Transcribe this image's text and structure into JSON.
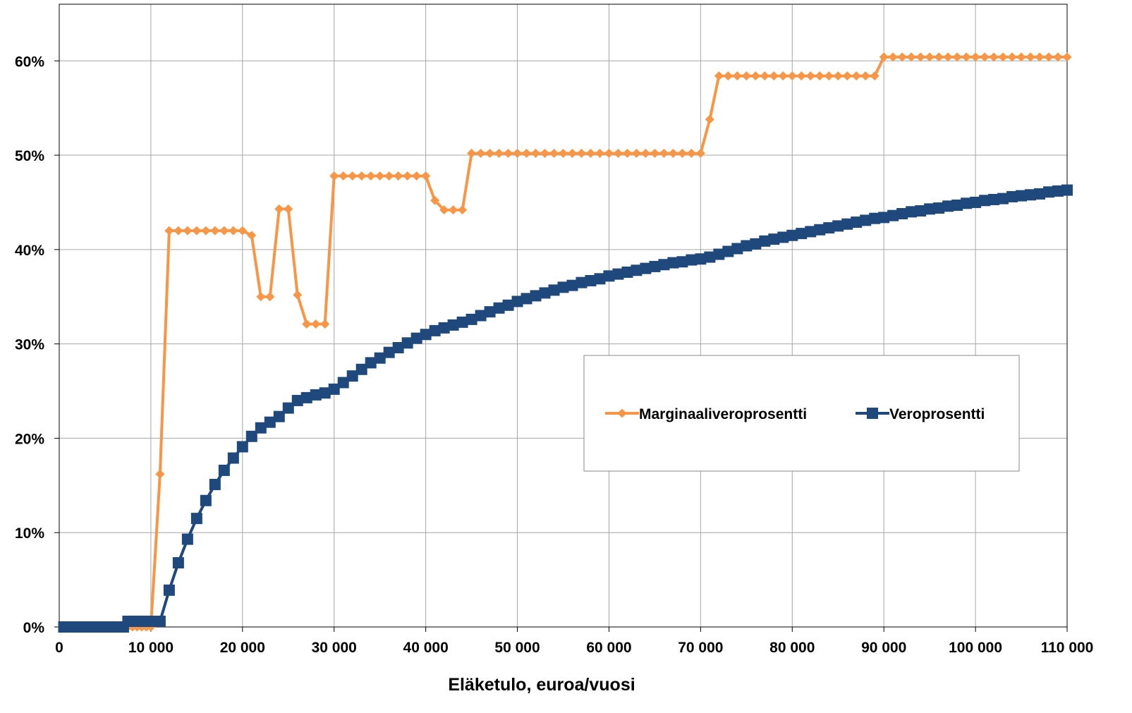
{
  "chart_data": {
    "type": "line",
    "xlabel": "Eläketulo, euroa/vuosi",
    "ylabel": "",
    "xlim": [
      0,
      110000
    ],
    "ylim": [
      0,
      0.6
    ],
    "x_ticks": [
      0,
      10000,
      20000,
      30000,
      40000,
      50000,
      60000,
      70000,
      80000,
      90000,
      100000,
      110000
    ],
    "x_tick_labels": [
      "0",
      "10 000",
      "20 000",
      "30 000",
      "40 000",
      "50 000",
      "60 000",
      "70 000",
      "80 000",
      "90 000",
      "100 000",
      "110 000"
    ],
    "y_ticks": [
      0,
      0.1,
      0.2,
      0.3,
      0.4,
      0.5,
      0.6
    ],
    "y_tick_labels": [
      "0%",
      "10%",
      "20%",
      "30%",
      "40%",
      "50%",
      "60%"
    ],
    "grid": true,
    "legend_position": "center-right",
    "series": [
      {
        "name": "Marginaaliveroprosentti",
        "color": "#F79646",
        "marker": "diamond",
        "x": [
          500,
          1000,
          1500,
          2000,
          2500,
          3000,
          3500,
          4000,
          4500,
          5000,
          5500,
          6000,
          6500,
          7000,
          7500,
          8000,
          8500,
          9000,
          9500,
          10000,
          11000,
          12000,
          13000,
          14000,
          15000,
          16000,
          17000,
          18000,
          19000,
          20000,
          21000,
          22000,
          23000,
          24000,
          25000,
          26000,
          27000,
          28000,
          29000,
          30000,
          31000,
          32000,
          33000,
          34000,
          35000,
          36000,
          37000,
          38000,
          39000,
          40000,
          41000,
          42000,
          43000,
          44000,
          45000,
          46000,
          47000,
          48000,
          49000,
          50000,
          51000,
          52000,
          53000,
          54000,
          55000,
          56000,
          57000,
          58000,
          59000,
          60000,
          61000,
          62000,
          63000,
          64000,
          65000,
          66000,
          67000,
          68000,
          69000,
          70000,
          71000,
          72000,
          73000,
          74000,
          75000,
          76000,
          77000,
          78000,
          79000,
          80000,
          81000,
          82000,
          83000,
          84000,
          85000,
          86000,
          87000,
          88000,
          89000,
          90000,
          91000,
          92000,
          93000,
          94000,
          95000,
          96000,
          97000,
          98000,
          99000,
          100000,
          101000,
          102000,
          103000,
          104000,
          105000,
          106000,
          107000,
          108000,
          109000,
          110000
        ],
        "y": [
          0,
          0,
          0,
          0,
          0,
          0,
          0,
          0,
          0,
          0,
          0,
          0,
          0,
          0,
          0,
          0,
          0,
          0,
          0,
          0,
          0.162,
          0.42,
          0.42,
          0.42,
          0.42,
          0.42,
          0.42,
          0.42,
          0.42,
          0.42,
          0.415,
          0.35,
          0.35,
          0.443,
          0.443,
          0.352,
          0.321,
          0.321,
          0.321,
          0.478,
          0.478,
          0.478,
          0.478,
          0.478,
          0.478,
          0.478,
          0.478,
          0.478,
          0.478,
          0.478,
          0.452,
          0.442,
          0.442,
          0.442,
          0.502,
          0.502,
          0.502,
          0.502,
          0.502,
          0.502,
          0.502,
          0.502,
          0.502,
          0.502,
          0.502,
          0.502,
          0.502,
          0.502,
          0.502,
          0.502,
          0.502,
          0.502,
          0.502,
          0.502,
          0.502,
          0.502,
          0.502,
          0.502,
          0.502,
          0.502,
          0.538,
          0.584,
          0.584,
          0.584,
          0.584,
          0.584,
          0.584,
          0.584,
          0.584,
          0.584,
          0.584,
          0.584,
          0.584,
          0.584,
          0.584,
          0.584,
          0.584,
          0.584,
          0.584,
          0.604,
          0.604,
          0.604,
          0.604,
          0.604,
          0.604,
          0.604,
          0.604,
          0.604,
          0.604,
          0.604,
          0.604,
          0.604,
          0.604,
          0.604,
          0.604,
          0.604,
          0.604,
          0.604,
          0.604,
          0.604
        ]
      },
      {
        "name": "Veroprosentti",
        "color": "#1F497D",
        "marker": "square",
        "x": [
          500,
          1000,
          1500,
          2000,
          2500,
          3000,
          3500,
          4000,
          4500,
          5000,
          5500,
          6000,
          6500,
          7000,
          7500,
          8000,
          8500,
          9000,
          9500,
          10000,
          11000,
          12000,
          13000,
          14000,
          15000,
          16000,
          17000,
          18000,
          19000,
          20000,
          21000,
          22000,
          23000,
          24000,
          25000,
          26000,
          27000,
          28000,
          29000,
          30000,
          31000,
          32000,
          33000,
          34000,
          35000,
          36000,
          37000,
          38000,
          39000,
          40000,
          41000,
          42000,
          43000,
          44000,
          45000,
          46000,
          47000,
          48000,
          49000,
          50000,
          51000,
          52000,
          53000,
          54000,
          55000,
          56000,
          57000,
          58000,
          59000,
          60000,
          61000,
          62000,
          63000,
          64000,
          65000,
          66000,
          67000,
          68000,
          69000,
          70000,
          71000,
          72000,
          73000,
          74000,
          75000,
          76000,
          77000,
          78000,
          79000,
          80000,
          81000,
          82000,
          83000,
          84000,
          85000,
          86000,
          87000,
          88000,
          89000,
          90000,
          91000,
          92000,
          93000,
          94000,
          95000,
          96000,
          97000,
          98000,
          99000,
          100000,
          101000,
          102000,
          103000,
          104000,
          105000,
          106000,
          107000,
          108000,
          109000,
          110000
        ],
        "y": [
          0,
          0,
          0,
          0,
          0,
          0,
          0,
          0,
          0,
          0,
          0,
          0,
          0,
          0,
          0.006,
          0.006,
          0.006,
          0.006,
          0.006,
          0.006,
          0.006,
          0.039,
          0.068,
          0.093,
          0.115,
          0.134,
          0.151,
          0.166,
          0.179,
          0.191,
          0.202,
          0.211,
          0.217,
          0.223,
          0.232,
          0.24,
          0.243,
          0.246,
          0.248,
          0.252,
          0.259,
          0.266,
          0.273,
          0.28,
          0.285,
          0.291,
          0.296,
          0.301,
          0.306,
          0.31,
          0.314,
          0.317,
          0.32,
          0.323,
          0.326,
          0.33,
          0.334,
          0.338,
          0.341,
          0.345,
          0.348,
          0.351,
          0.354,
          0.357,
          0.36,
          0.362,
          0.365,
          0.367,
          0.369,
          0.372,
          0.374,
          0.376,
          0.378,
          0.38,
          0.382,
          0.384,
          0.386,
          0.387,
          0.389,
          0.39,
          0.392,
          0.395,
          0.398,
          0.401,
          0.404,
          0.406,
          0.409,
          0.411,
          0.413,
          0.415,
          0.417,
          0.419,
          0.421,
          0.423,
          0.425,
          0.427,
          0.429,
          0.431,
          0.433,
          0.434,
          0.436,
          0.438,
          0.44,
          0.441,
          0.443,
          0.444,
          0.446,
          0.447,
          0.449,
          0.45,
          0.452,
          0.453,
          0.454,
          0.456,
          0.457,
          0.458,
          0.459,
          0.461,
          0.462,
          0.463
        ]
      }
    ]
  }
}
